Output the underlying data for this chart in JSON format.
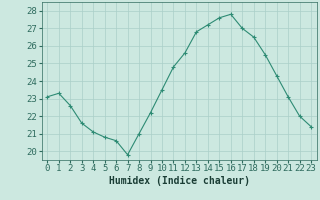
{
  "x": [
    0,
    1,
    2,
    3,
    4,
    5,
    6,
    7,
    8,
    9,
    10,
    11,
    12,
    13,
    14,
    15,
    16,
    17,
    18,
    19,
    20,
    21,
    22,
    23
  ],
  "y": [
    23.1,
    23.3,
    22.6,
    21.6,
    21.1,
    20.8,
    20.6,
    19.8,
    21.0,
    22.2,
    23.5,
    24.8,
    25.6,
    26.8,
    27.2,
    27.6,
    27.8,
    27.0,
    26.5,
    25.5,
    24.3,
    23.1,
    22.0,
    21.4
  ],
  "line_color": "#2e8b74",
  "marker": "+",
  "marker_size": 3,
  "bg_color": "#cce8e0",
  "grid_color": "#aacfc8",
  "xlabel": "Humidex (Indice chaleur)",
  "ylim": [
    19.5,
    28.5
  ],
  "xlim": [
    -0.5,
    23.5
  ],
  "yticks": [
    20,
    21,
    22,
    23,
    24,
    25,
    26,
    27,
    28
  ],
  "xticks": [
    0,
    1,
    2,
    3,
    4,
    5,
    6,
    7,
    8,
    9,
    10,
    11,
    12,
    13,
    14,
    15,
    16,
    17,
    18,
    19,
    20,
    21,
    22,
    23
  ],
  "tick_color": "#2e6b5e",
  "xlabel_color": "#1a3d35",
  "xlabel_fontsize": 7,
  "tick_fontsize": 6.5
}
